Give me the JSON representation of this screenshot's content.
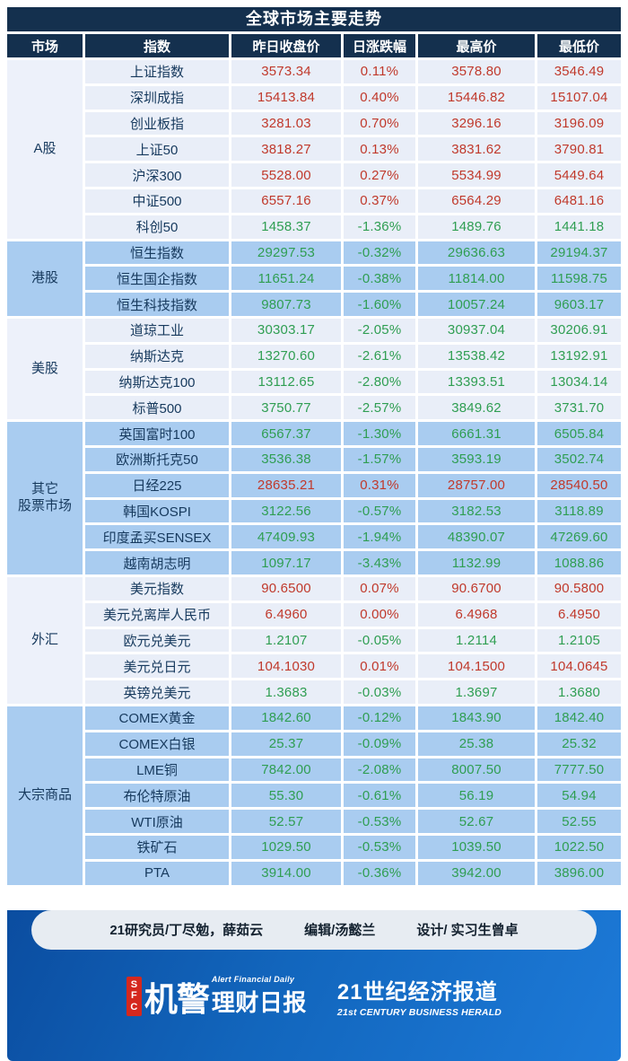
{
  "colors": {
    "up_red": "#c0392b",
    "down_green": "#2f9e52",
    "header_navy": "#14304e",
    "row_light": "#e9eef8",
    "row_blue": "#a9ccf0",
    "footer_gradient_start": "#0b4da0",
    "footer_gradient_end": "#1d7ad8",
    "sfc_red": "#d5281e"
  },
  "chart_data": {
    "type": "table",
    "title": "全球市场主要走势",
    "columns": [
      "市场",
      "指数",
      "昨日收盘价",
      "日涨跌幅",
      "最高价",
      "最低价"
    ],
    "sections": [
      {
        "market": "A股",
        "tone": "light",
        "rows": [
          {
            "name": "上证指数",
            "close": "3573.34",
            "change": "0.11%",
            "high": "3578.80",
            "low": "3546.49",
            "dir": "up"
          },
          {
            "name": "深圳成指",
            "close": "15413.84",
            "change": "0.40%",
            "high": "15446.82",
            "low": "15107.04",
            "dir": "up"
          },
          {
            "name": "创业板指",
            "close": "3281.03",
            "change": "0.70%",
            "high": "3296.16",
            "low": "3196.09",
            "dir": "up"
          },
          {
            "name": "上证50",
            "close": "3818.27",
            "change": "0.13%",
            "high": "3831.62",
            "low": "3790.81",
            "dir": "up"
          },
          {
            "name": "沪深300",
            "close": "5528.00",
            "change": "0.27%",
            "high": "5534.99",
            "low": "5449.64",
            "dir": "up"
          },
          {
            "name": "中证500",
            "close": "6557.16",
            "change": "0.37%",
            "high": "6564.29",
            "low": "6481.16",
            "dir": "up"
          },
          {
            "name": "科创50",
            "close": "1458.37",
            "change": "-1.36%",
            "high": "1489.76",
            "low": "1441.18",
            "dir": "down"
          }
        ]
      },
      {
        "market": "港股",
        "tone": "blue",
        "rows": [
          {
            "name": "恒生指数",
            "close": "29297.53",
            "change": "-0.32%",
            "high": "29636.63",
            "low": "29194.37",
            "dir": "down"
          },
          {
            "name": "恒生国企指数",
            "close": "11651.24",
            "change": "-0.38%",
            "high": "11814.00",
            "low": "11598.75",
            "dir": "down"
          },
          {
            "name": "恒生科技指数",
            "close": "9807.73",
            "change": "-1.60%",
            "high": "10057.24",
            "low": "9603.17",
            "dir": "down"
          }
        ]
      },
      {
        "market": "美股",
        "tone": "light",
        "rows": [
          {
            "name": "道琼工业",
            "close": "30303.17",
            "change": "-2.05%",
            "high": "30937.04",
            "low": "30206.91",
            "dir": "down"
          },
          {
            "name": "纳斯达克",
            "close": "13270.60",
            "change": "-2.61%",
            "high": "13538.42",
            "low": "13192.91",
            "dir": "down"
          },
          {
            "name": "纳斯达克100",
            "close": "13112.65",
            "change": "-2.80%",
            "high": "13393.51",
            "low": "13034.14",
            "dir": "down"
          },
          {
            "name": "标普500",
            "close": "3750.77",
            "change": "-2.57%",
            "high": "3849.62",
            "low": "3731.70",
            "dir": "down"
          }
        ]
      },
      {
        "market": "其它\n股票市场",
        "tone": "blue",
        "rows": [
          {
            "name": "英国富时100",
            "close": "6567.37",
            "change": "-1.30%",
            "high": "6661.31",
            "low": "6505.84",
            "dir": "down"
          },
          {
            "name": "欧洲斯托克50",
            "close": "3536.38",
            "change": "-1.57%",
            "high": "3593.19",
            "low": "3502.74",
            "dir": "down"
          },
          {
            "name": "日经225",
            "close": "28635.21",
            "change": "0.31%",
            "high": "28757.00",
            "low": "28540.50",
            "dir": "up"
          },
          {
            "name": "韩国KOSPI",
            "close": "3122.56",
            "change": "-0.57%",
            "high": "3182.53",
            "low": "3118.89",
            "dir": "down"
          },
          {
            "name": "印度孟买SENSEX",
            "close": "47409.93",
            "change": "-1.94%",
            "high": "48390.07",
            "low": "47269.60",
            "dir": "down"
          },
          {
            "name": "越南胡志明",
            "close": "1097.17",
            "change": "-3.43%",
            "high": "1132.99",
            "low": "1088.86",
            "dir": "down"
          }
        ]
      },
      {
        "market": "外汇",
        "tone": "light",
        "rows": [
          {
            "name": "美元指数",
            "close": "90.6500",
            "change": "0.07%",
            "high": "90.6700",
            "low": "90.5800",
            "dir": "up"
          },
          {
            "name": "美元兑离岸人民币",
            "close": "6.4960",
            "change": "0.00%",
            "high": "6.4968",
            "low": "6.4950",
            "dir": "up"
          },
          {
            "name": "欧元兑美元",
            "close": "1.2107",
            "change": "-0.05%",
            "high": "1.2114",
            "low": "1.2105",
            "dir": "down"
          },
          {
            "name": "美元兑日元",
            "close": "104.1030",
            "change": "0.01%",
            "high": "104.1500",
            "low": "104.0645",
            "dir": "up"
          },
          {
            "name": "英镑兑美元",
            "close": "1.3683",
            "change": "-0.03%",
            "high": "1.3697",
            "low": "1.3680",
            "dir": "down"
          }
        ]
      },
      {
        "market": "大宗商品",
        "tone": "blue",
        "rows": [
          {
            "name": "COMEX黄金",
            "close": "1842.60",
            "change": "-0.12%",
            "high": "1843.90",
            "low": "1842.40",
            "dir": "down"
          },
          {
            "name": "COMEX白银",
            "close": "25.37",
            "change": "-0.09%",
            "high": "25.38",
            "low": "25.32",
            "dir": "down"
          },
          {
            "name": "LME铜",
            "close": "7842.00",
            "change": "-2.08%",
            "high": "8007.50",
            "low": "7777.50",
            "dir": "down"
          },
          {
            "name": "布伦特原油",
            "close": "55.30",
            "change": "-0.61%",
            "high": "56.19",
            "low": "54.94",
            "dir": "down"
          },
          {
            "name": "WTI原油",
            "close": "52.57",
            "change": "-0.53%",
            "high": "52.67",
            "low": "52.55",
            "dir": "down"
          },
          {
            "name": "铁矿石",
            "close": "1029.50",
            "change": "-0.53%",
            "high": "1039.50",
            "low": "1022.50",
            "dir": "down"
          },
          {
            "name": "PTA",
            "close": "3914.00",
            "change": "-0.36%",
            "high": "3942.00",
            "low": "3896.00",
            "dir": "down"
          }
        ]
      }
    ]
  },
  "footer": {
    "credit_researchers": "21研究员/丁尽勉，薛茹云",
    "credit_editor": "编辑/汤懿兰",
    "credit_design": "设计/ 实习生曾卓",
    "logo_sfc": "SFC",
    "brand_cn_1": "机警",
    "brand_en": "Alert Financial Daily",
    "brand_cn_2": "理财日报",
    "paper_cn": "21世纪经济报道",
    "paper_en": "21st CENTURY BUSINESS HERALD"
  }
}
